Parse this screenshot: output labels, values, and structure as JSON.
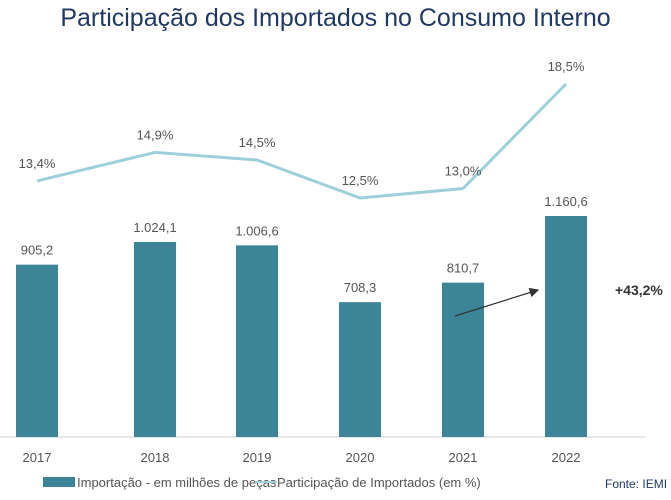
{
  "chart_data": {
    "type": "bar",
    "title": "Participação dos Importados no Consumo Interno",
    "categories": [
      "2017",
      "2018",
      "2019",
      "2020",
      "2021",
      "2022"
    ],
    "series": [
      {
        "name": "Importação - em milhões de peças",
        "type": "bar",
        "values": [
          905.2,
          1024.1,
          1006.6,
          708.3,
          810.7,
          1160.6
        ],
        "labels": [
          "905,2",
          "1.024,1",
          "1.006,6",
          "708,3",
          "810,7",
          "1.160,6"
        ],
        "color": "#3b8596"
      },
      {
        "name": "Participação de Importados (em %)",
        "type": "line",
        "values": [
          13.4,
          14.9,
          14.5,
          12.5,
          13.0,
          18.5
        ],
        "labels": [
          "13,4%",
          "14,9%",
          "14,5%",
          "12,5%",
          "13,0%",
          "18,5%"
        ],
        "color": "#9dd0da"
      }
    ],
    "annotation": {
      "text": "+43,2%",
      "from": "2021",
      "to": "2022"
    },
    "source": "Fonte: IEMI",
    "grid": false,
    "legend": "bottom"
  }
}
